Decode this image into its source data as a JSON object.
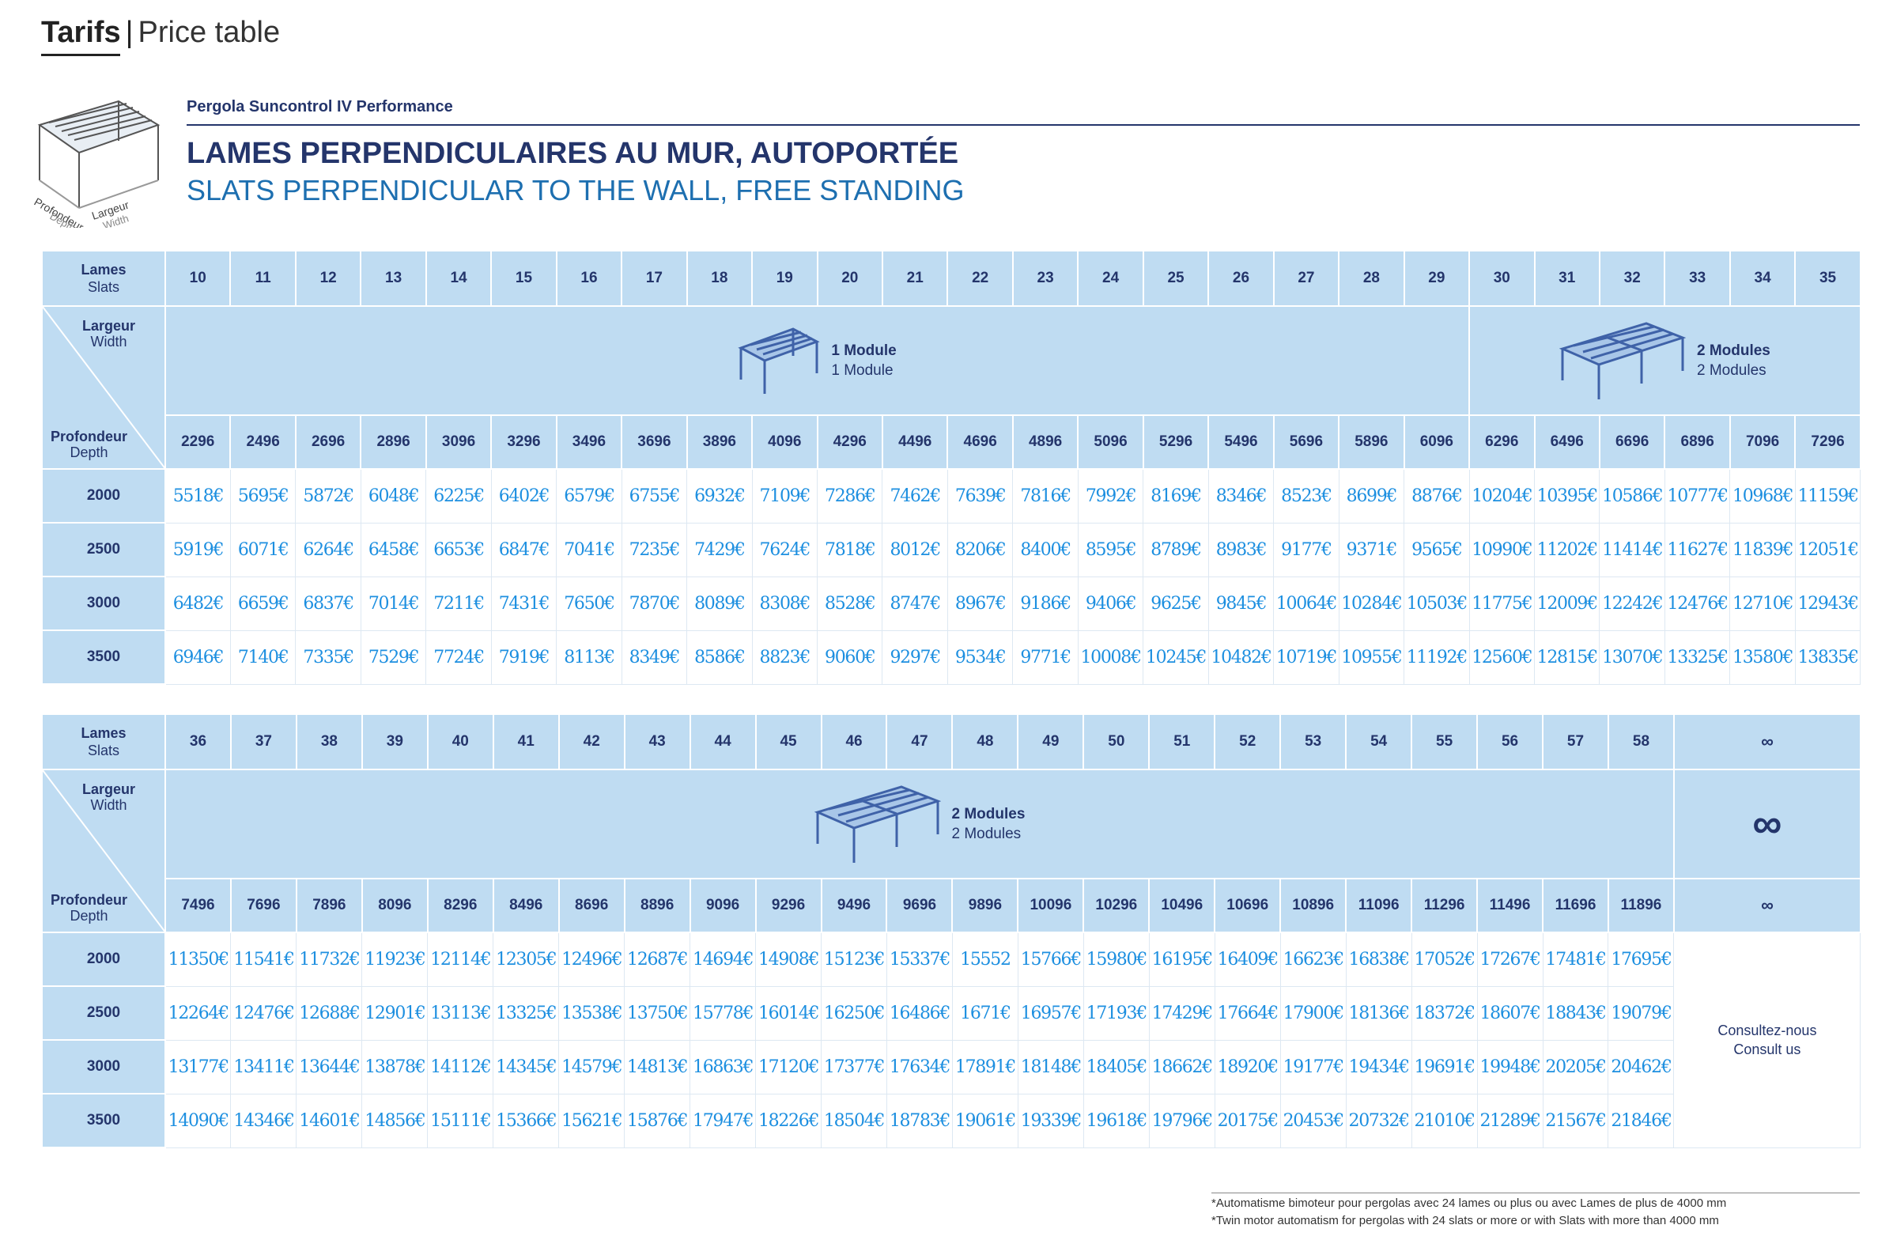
{
  "page": {
    "title_bold": "Tarifs",
    "title_separator": "|",
    "title_light": "Price table"
  },
  "product": {
    "name": "Pergola Suncontrol IV Performance",
    "heading_fr": "LAMES PERPENDICULAIRES AU MUR, AUTOPORTÉE",
    "heading_en": "SLATS PERPENDICULAR TO THE WALL, FREE STANDING",
    "icon_labels": {
      "depth_fr": "Profondeur",
      "depth_en": "Depth",
      "width_fr": "Largeur",
      "width_en": "Width"
    }
  },
  "labels": {
    "lames": "Lames",
    "slats": "Slats",
    "largeur": "Largeur",
    "width": "Width",
    "profondeur": "Profondeur",
    "depth": "Depth"
  },
  "modules": {
    "one_fr": "1 Module",
    "one_en": "1 Module",
    "two_fr": "2 Modules",
    "two_en": "2 Modules"
  },
  "table1": {
    "slats": [
      "10",
      "11",
      "12",
      "13",
      "14",
      "15",
      "16",
      "17",
      "18",
      "19",
      "20",
      "21",
      "22",
      "23",
      "24",
      "25",
      "26",
      "27",
      "28",
      "29",
      "30",
      "31",
      "32",
      "33",
      "34",
      "35"
    ],
    "widths": [
      "2296",
      "2496",
      "2696",
      "2896",
      "3096",
      "3296",
      "3496",
      "3696",
      "3896",
      "4096",
      "4296",
      "4496",
      "4696",
      "4896",
      "5096",
      "5296",
      "5496",
      "5696",
      "5896",
      "6096",
      "6296",
      "6496",
      "6696",
      "6896",
      "7096",
      "7296"
    ],
    "rows": [
      {
        "depth": "2000",
        "prices": [
          "5518€",
          "5695€",
          "5872€",
          "6048€",
          "6225€",
          "6402€",
          "6579€",
          "6755€",
          "6932€",
          "7109€",
          "7286€",
          "7462€",
          "7639€",
          "7816€",
          "7992€",
          "8169€",
          "8346€",
          "8523€",
          "8699€",
          "8876€",
          "10204€",
          "10395€",
          "10586€",
          "10777€",
          "10968€",
          "11159€"
        ]
      },
      {
        "depth": "2500",
        "prices": [
          "5919€",
          "6071€",
          "6264€",
          "6458€",
          "6653€",
          "6847€",
          "7041€",
          "7235€",
          "7429€",
          "7624€",
          "7818€",
          "8012€",
          "8206€",
          "8400€",
          "8595€",
          "8789€",
          "8983€",
          "9177€",
          "9371€",
          "9565€",
          "10990€",
          "11202€",
          "11414€",
          "11627€",
          "11839€",
          "12051€"
        ]
      },
      {
        "depth": "3000",
        "prices": [
          "6482€",
          "6659€",
          "6837€",
          "7014€",
          "7211€",
          "7431€",
          "7650€",
          "7870€",
          "8089€",
          "8308€",
          "8528€",
          "8747€",
          "8967€",
          "9186€",
          "9406€",
          "9625€",
          "9845€",
          "10064€",
          "10284€",
          "10503€",
          "11775€",
          "12009€",
          "12242€",
          "12476€",
          "12710€",
          "12943€"
        ]
      },
      {
        "depth": "3500",
        "prices": [
          "6946€",
          "7140€",
          "7335€",
          "7529€",
          "7724€",
          "7919€",
          "8113€",
          "8349€",
          "8586€",
          "8823€",
          "9060€",
          "9297€",
          "9534€",
          "9771€",
          "10008€",
          "10245€",
          "10482€",
          "10719€",
          "10955€",
          "11192€",
          "12560€",
          "12815€",
          "13070€",
          "13325€",
          "13580€",
          "13835€"
        ]
      }
    ]
  },
  "table2": {
    "slats": [
      "36",
      "37",
      "38",
      "39",
      "40",
      "41",
      "42",
      "43",
      "44",
      "45",
      "46",
      "47",
      "48",
      "49",
      "50",
      "51",
      "52",
      "53",
      "54",
      "55",
      "56",
      "57",
      "58"
    ],
    "widths": [
      "7496",
      "7696",
      "7896",
      "8096",
      "8296",
      "8496",
      "8696",
      "8896",
      "9096",
      "9296",
      "9496",
      "9696",
      "9896",
      "10096",
      "10296",
      "10496",
      "10696",
      "10896",
      "11096",
      "11296",
      "11496",
      "11696",
      "11896"
    ],
    "infinity": "∞",
    "consult_fr": "Consultez-nous",
    "consult_en": "Consult us",
    "rows": [
      {
        "depth": "2000",
        "prices": [
          "11350€",
          "11541€",
          "11732€",
          "11923€",
          "12114€",
          "12305€",
          "12496€",
          "12687€",
          "14694€",
          "14908€",
          "15123€",
          "15337€",
          "15552",
          "15766€",
          "15980€",
          "16195€",
          "16409€",
          "16623€",
          "16838€",
          "17052€",
          "17267€",
          "17481€",
          "17695€"
        ]
      },
      {
        "depth": "2500",
        "prices": [
          "12264€",
          "12476€",
          "12688€",
          "12901€",
          "13113€",
          "13325€",
          "13538€",
          "13750€",
          "15778€",
          "16014€",
          "16250€",
          "16486€",
          "1671€",
          "16957€",
          "17193€",
          "17429€",
          "17664€",
          "17900€",
          "18136€",
          "18372€",
          "18607€",
          "18843€",
          "19079€"
        ]
      },
      {
        "depth": "3000",
        "prices": [
          "13177€",
          "13411€",
          "13644€",
          "13878€",
          "14112€",
          "14345€",
          "14579€",
          "14813€",
          "16863€",
          "17120€",
          "17377€",
          "17634€",
          "17891€",
          "18148€",
          "18405€",
          "18662€",
          "18920€",
          "19177€",
          "19434€",
          "19691€",
          "19948€",
          "20205€",
          "20462€"
        ]
      },
      {
        "depth": "3500",
        "prices": [
          "14090€",
          "14346€",
          "14601€",
          "14856€",
          "15111€",
          "15366€",
          "15621€",
          "15876€",
          "17947€",
          "18226€",
          "18504€",
          "18783€",
          "19061€",
          "19339€",
          "19618€",
          "19796€",
          "20175€",
          "20453€",
          "20732€",
          "21010€",
          "21289€",
          "21567€",
          "21846€"
        ]
      }
    ]
  },
  "footnote": {
    "fr": "*Automatisme bimoteur pour pergolas avec 24 lames ou plus ou avec Lames de plus de 4000 mm",
    "en": "*Twin motor automatism for pergolas with 24 slats or more or with Slats with more than 4000 mm"
  }
}
